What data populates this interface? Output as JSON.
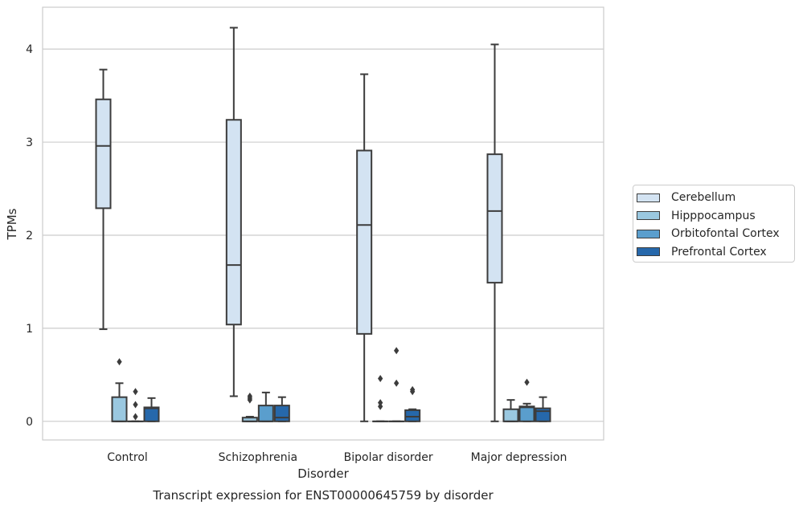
{
  "chart_data": {
    "type": "box",
    "title": "",
    "caption": "Transcript expression for ENST00000645759 by disorder",
    "xlabel": "Disorder",
    "ylabel": "TPMs",
    "ylim": [
      -0.2,
      4.45
    ],
    "yticks": [
      0,
      1,
      2,
      3,
      4
    ],
    "grid": "horizontal",
    "legend_position": "right",
    "categories": [
      "Control",
      "Schizophrenia",
      "Bipolar disorder",
      "Major depression"
    ],
    "series": [
      {
        "name": "Cerebellum",
        "color": "#d3e3f2",
        "boxes": [
          {
            "whisker_low": 0.99,
            "q1": 2.29,
            "median": 2.96,
            "q3": 3.46,
            "whisker_high": 3.78,
            "outliers": []
          },
          {
            "whisker_low": 0.27,
            "q1": 1.04,
            "median": 1.68,
            "q3": 3.24,
            "whisker_high": 4.23,
            "outliers": []
          },
          {
            "whisker_low": 0.0,
            "q1": 0.94,
            "median": 2.11,
            "q3": 2.91,
            "whisker_high": 3.73,
            "outliers": []
          },
          {
            "whisker_low": 0.0,
            "q1": 1.49,
            "median": 2.26,
            "q3": 2.87,
            "whisker_high": 4.05,
            "outliers": []
          }
        ]
      },
      {
        "name": "Hipppocampus",
        "color": "#9ac8e0",
        "boxes": [
          {
            "whisker_low": 0.0,
            "q1": 0.0,
            "median": 0.0,
            "q3": 0.26,
            "whisker_high": 0.41,
            "outliers": [
              0.64
            ]
          },
          {
            "whisker_low": 0.0,
            "q1": 0.0,
            "median": 0.0,
            "q3": 0.04,
            "whisker_high": 0.05,
            "outliers": [
              0.23,
              0.25,
              0.27
            ]
          },
          {
            "whisker_low": 0.0,
            "q1": 0.0,
            "median": 0.0,
            "q3": 0.0,
            "whisker_high": 0.0,
            "outliers": [
              0.16,
              0.2,
              0.46
            ]
          },
          {
            "whisker_low": 0.0,
            "q1": 0.0,
            "median": 0.0,
            "q3": 0.13,
            "whisker_high": 0.23,
            "outliers": []
          }
        ]
      },
      {
        "name": "Orbitofontal Cortex",
        "color": "#5a9ecd",
        "boxes": [
          {
            "whisker_low": 0.0,
            "q1": 0.0,
            "median": 0.0,
            "q3": 0.0,
            "whisker_high": 0.0,
            "outliers": [
              0.05,
              0.18,
              0.32
            ]
          },
          {
            "whisker_low": 0.0,
            "q1": 0.0,
            "median": 0.0,
            "q3": 0.17,
            "whisker_high": 0.31,
            "outliers": []
          },
          {
            "whisker_low": 0.0,
            "q1": 0.0,
            "median": 0.0,
            "q3": 0.0,
            "whisker_high": 0.0,
            "outliers": [
              0.41,
              0.76
            ]
          },
          {
            "whisker_low": 0.0,
            "q1": 0.0,
            "median": 0.15,
            "q3": 0.16,
            "whisker_high": 0.19,
            "outliers": [
              0.42
            ]
          }
        ]
      },
      {
        "name": "Prefrontal Cortex",
        "color": "#2668ab",
        "boxes": [
          {
            "whisker_low": 0.0,
            "q1": 0.0,
            "median": 0.14,
            "q3": 0.15,
            "whisker_high": 0.25,
            "outliers": []
          },
          {
            "whisker_low": 0.0,
            "q1": 0.0,
            "median": 0.04,
            "q3": 0.17,
            "whisker_high": 0.26,
            "outliers": []
          },
          {
            "whisker_low": 0.0,
            "q1": 0.0,
            "median": 0.05,
            "q3": 0.12,
            "whisker_high": 0.13,
            "outliers": [
              0.32,
              0.34
            ]
          },
          {
            "whisker_low": 0.0,
            "q1": 0.0,
            "median": 0.11,
            "q3": 0.14,
            "whisker_high": 0.26,
            "outliers": []
          }
        ]
      }
    ]
  }
}
